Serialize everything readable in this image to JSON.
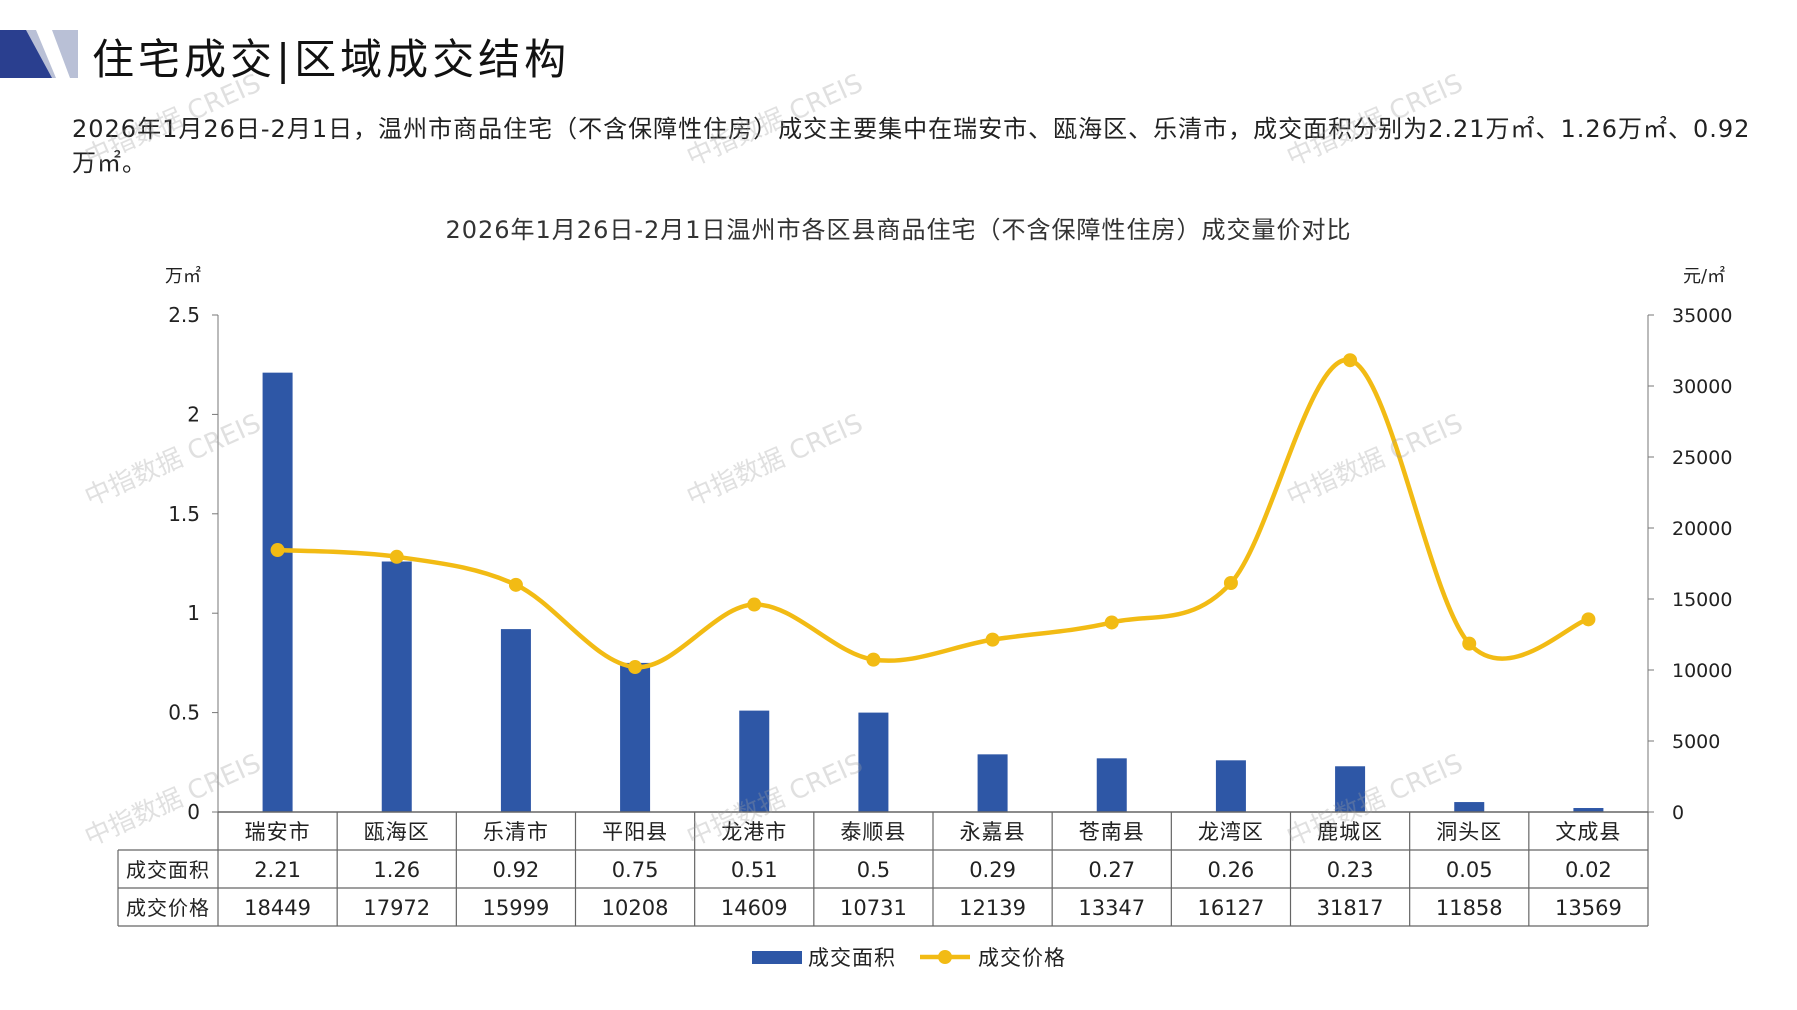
{
  "page": {
    "title": "住宅成交|区域成交结构",
    "summary": "2026年1月26日-2月1日，温州市商品住宅（不含保障性住房）成交主要集中在瑞安市、瓯海区、乐清市，成交面积分别为2.21万㎡、1.26万㎡、0.92万㎡。",
    "watermark": "中指数据 CREIS"
  },
  "colors": {
    "bar": "#2e57a6",
    "line": "#f2bb14",
    "grid": "#666666",
    "logo_dark": "#2a3f8f",
    "logo_light": "#b9c0d6"
  },
  "chart_data": {
    "type": "bar",
    "title": "2026年1月26日-2月1日温州市各区县商品住宅（不含保障性住房）成交量价对比",
    "categories": [
      "瑞安市",
      "瓯海区",
      "乐清市",
      "平阳县",
      "龙港市",
      "泰顺县",
      "永嘉县",
      "苍南县",
      "龙湾区",
      "鹿城区",
      "洞头区",
      "文成县"
    ],
    "y_left": {
      "unit": "万㎡",
      "ticks": [
        "2.5",
        "2",
        "1.5",
        "1",
        "0.5",
        "0"
      ],
      "range": [
        0,
        2.5
      ]
    },
    "y_right": {
      "unit": "元/㎡",
      "ticks": [
        "35000",
        "30000",
        "25000",
        "20000",
        "15000",
        "10000",
        "5000",
        "0"
      ],
      "range": [
        0,
        35000
      ]
    },
    "series": [
      {
        "name": "成交面积",
        "type": "bar",
        "axis": "left",
        "values": [
          2.21,
          1.26,
          0.92,
          0.75,
          0.51,
          0.5,
          0.29,
          0.27,
          0.26,
          0.23,
          0.05,
          0.02
        ],
        "labels": [
          "2.21",
          "1.26",
          "0.92",
          "0.75",
          "0.51",
          "0.5",
          "0.29",
          "0.27",
          "0.26",
          "0.23",
          "0.05",
          "0.02"
        ]
      },
      {
        "name": "成交价格",
        "type": "line",
        "axis": "right",
        "values": [
          18449,
          17972,
          15999,
          10208,
          14609,
          10731,
          12139,
          13347,
          16127,
          31817,
          11858,
          13569
        ],
        "labels": [
          "18449",
          "17972",
          "15999",
          "10208",
          "14609",
          "10731",
          "12139",
          "13347",
          "16127",
          "31817",
          "11858",
          "13569"
        ]
      }
    ],
    "legend": {
      "position": "bottom"
    }
  }
}
